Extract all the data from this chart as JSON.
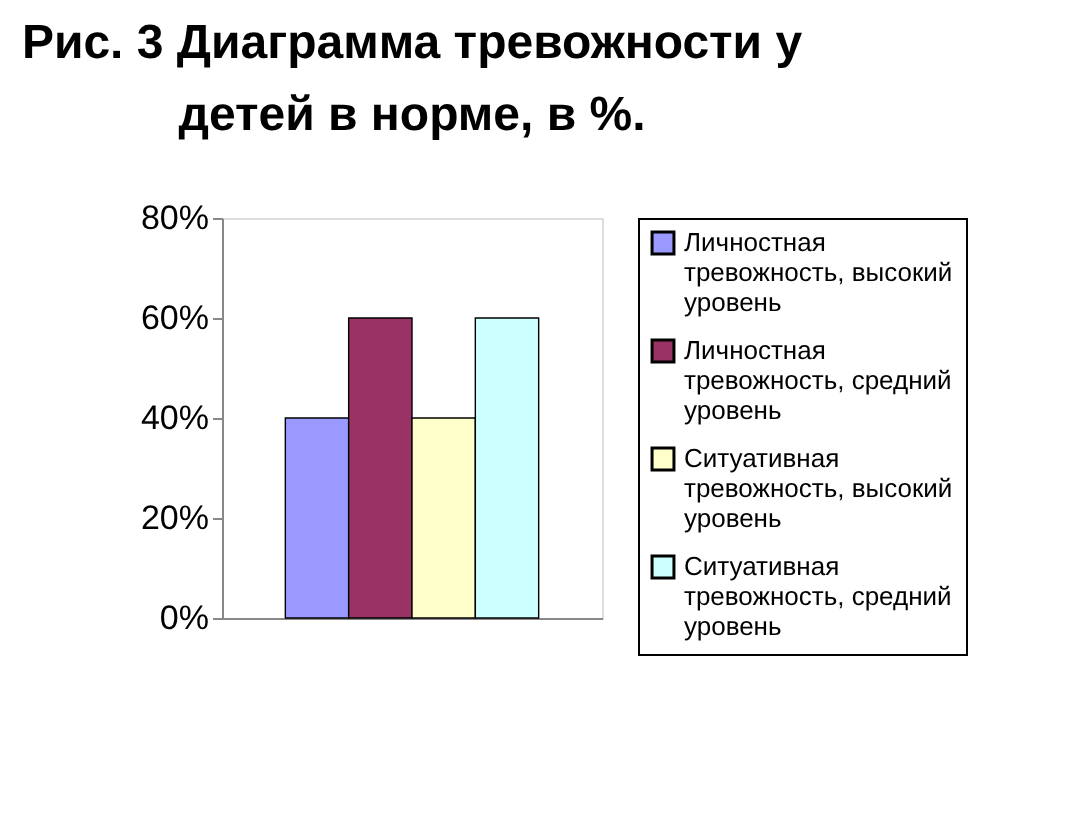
{
  "chart_data": {
    "type": "bar",
    "title": "Рис. 3 Диаграмма тревожности у детей в норме, в %.",
    "categories": [
      null
    ],
    "series": [
      {
        "name": "Личностная тревожность, высокий уровень",
        "color": "#9999ff",
        "values": [
          40
        ]
      },
      {
        "name": "Личностная тревожность, средний уровень",
        "color": "#993366",
        "values": [
          60
        ]
      },
      {
        "name": "Ситуативная тревожность, высокий уровень",
        "color": "#ffffcc",
        "values": [
          40
        ]
      },
      {
        "name": "Ситуативная тревожность, средний уровень",
        "color": "#ccffff",
        "values": [
          60
        ]
      }
    ],
    "ylim": [
      0,
      80
    ],
    "yticks": [
      {
        "value": 0,
        "label": "0%"
      },
      {
        "value": 20,
        "label": "20%"
      },
      {
        "value": 40,
        "label": "40%"
      },
      {
        "value": 60,
        "label": "60%"
      },
      {
        "value": 80,
        "label": "80%"
      }
    ],
    "grid": false,
    "legend": "right"
  }
}
